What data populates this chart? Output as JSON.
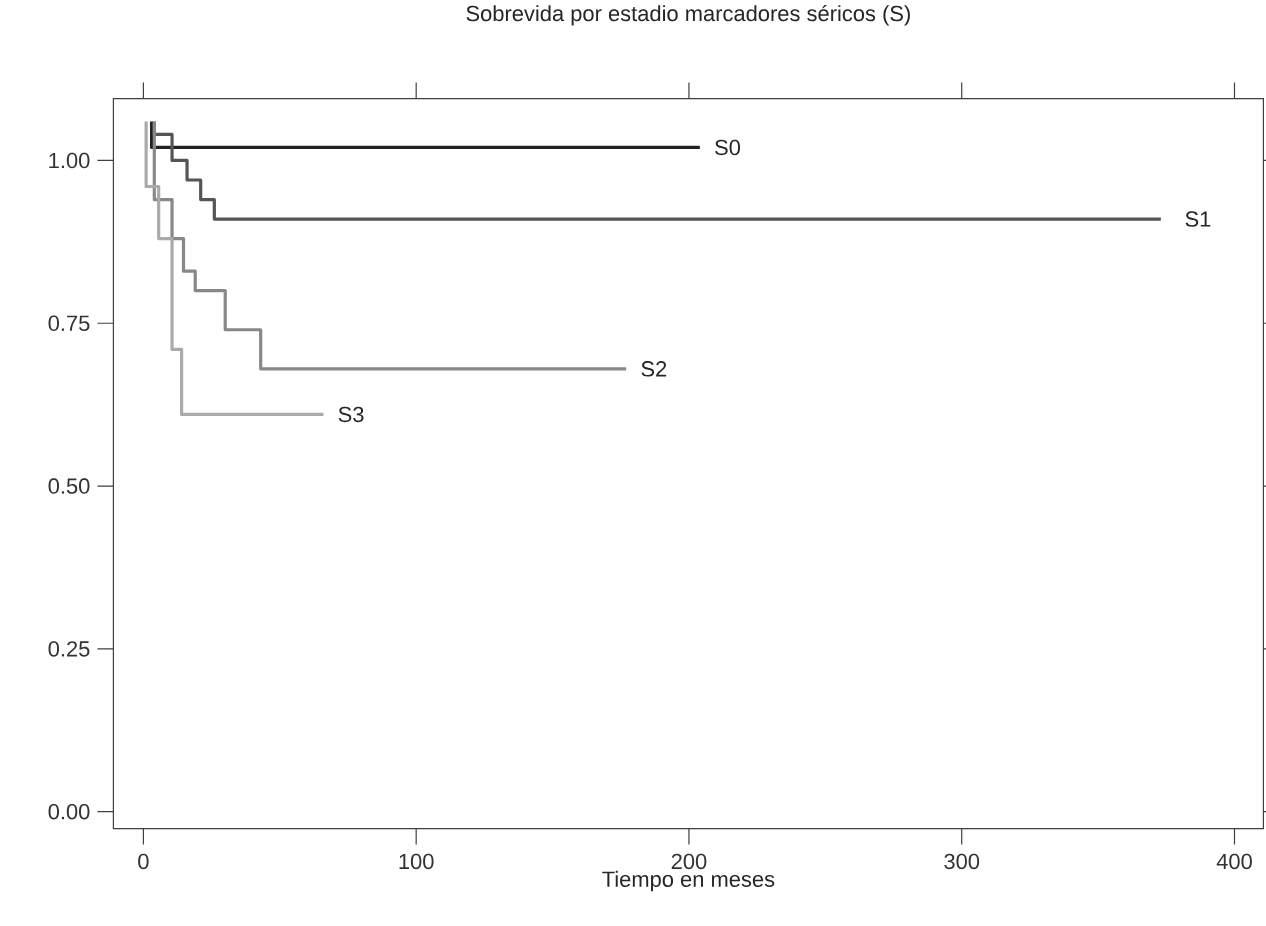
{
  "chart_data": {
    "type": "step",
    "title": "Sobrevida por estadio marcadores séricos (S)",
    "xlabel": "Tiempo en meses",
    "xlim": [
      -11,
      410.6
    ],
    "ylim": [
      -0.026,
      1.095
    ],
    "xticks": [
      0,
      100,
      200,
      300,
      400
    ],
    "yticks": [
      {
        "value": 0,
        "label": "0.00"
      },
      {
        "value": 0.25,
        "label": "0.25"
      },
      {
        "value": 0.5,
        "label": "0.50"
      },
      {
        "value": 0.75,
        "label": "0.75"
      },
      {
        "value": 1,
        "label": "1.00"
      }
    ],
    "series": [
      {
        "name": "S0",
        "color": "#222222",
        "x": [
          3,
          3,
          204
        ],
        "values": [
          1.06,
          1.02,
          1.02
        ]
      },
      {
        "name": "S1",
        "color": "#555555",
        "x": [
          4,
          4,
          10.5,
          16,
          21,
          26,
          373
        ],
        "values": [
          1.06,
          1.04,
          1.0,
          0.97,
          0.94,
          0.91,
          0.91
        ]
      },
      {
        "name": "S2",
        "color": "#888888",
        "x": [
          4,
          4,
          10.5,
          14.7,
          19,
          30,
          43,
          177
        ],
        "values": [
          1.06,
          0.94,
          0.88,
          0.83,
          0.8,
          0.74,
          0.68,
          0.68
        ]
      },
      {
        "name": "S3",
        "color": "#aaaaaa",
        "x": [
          1,
          1,
          5.6,
          10.5,
          14,
          66
        ],
        "values": [
          1.06,
          0.96,
          0.88,
          0.71,
          0.61,
          0.61
        ]
      }
    ]
  }
}
